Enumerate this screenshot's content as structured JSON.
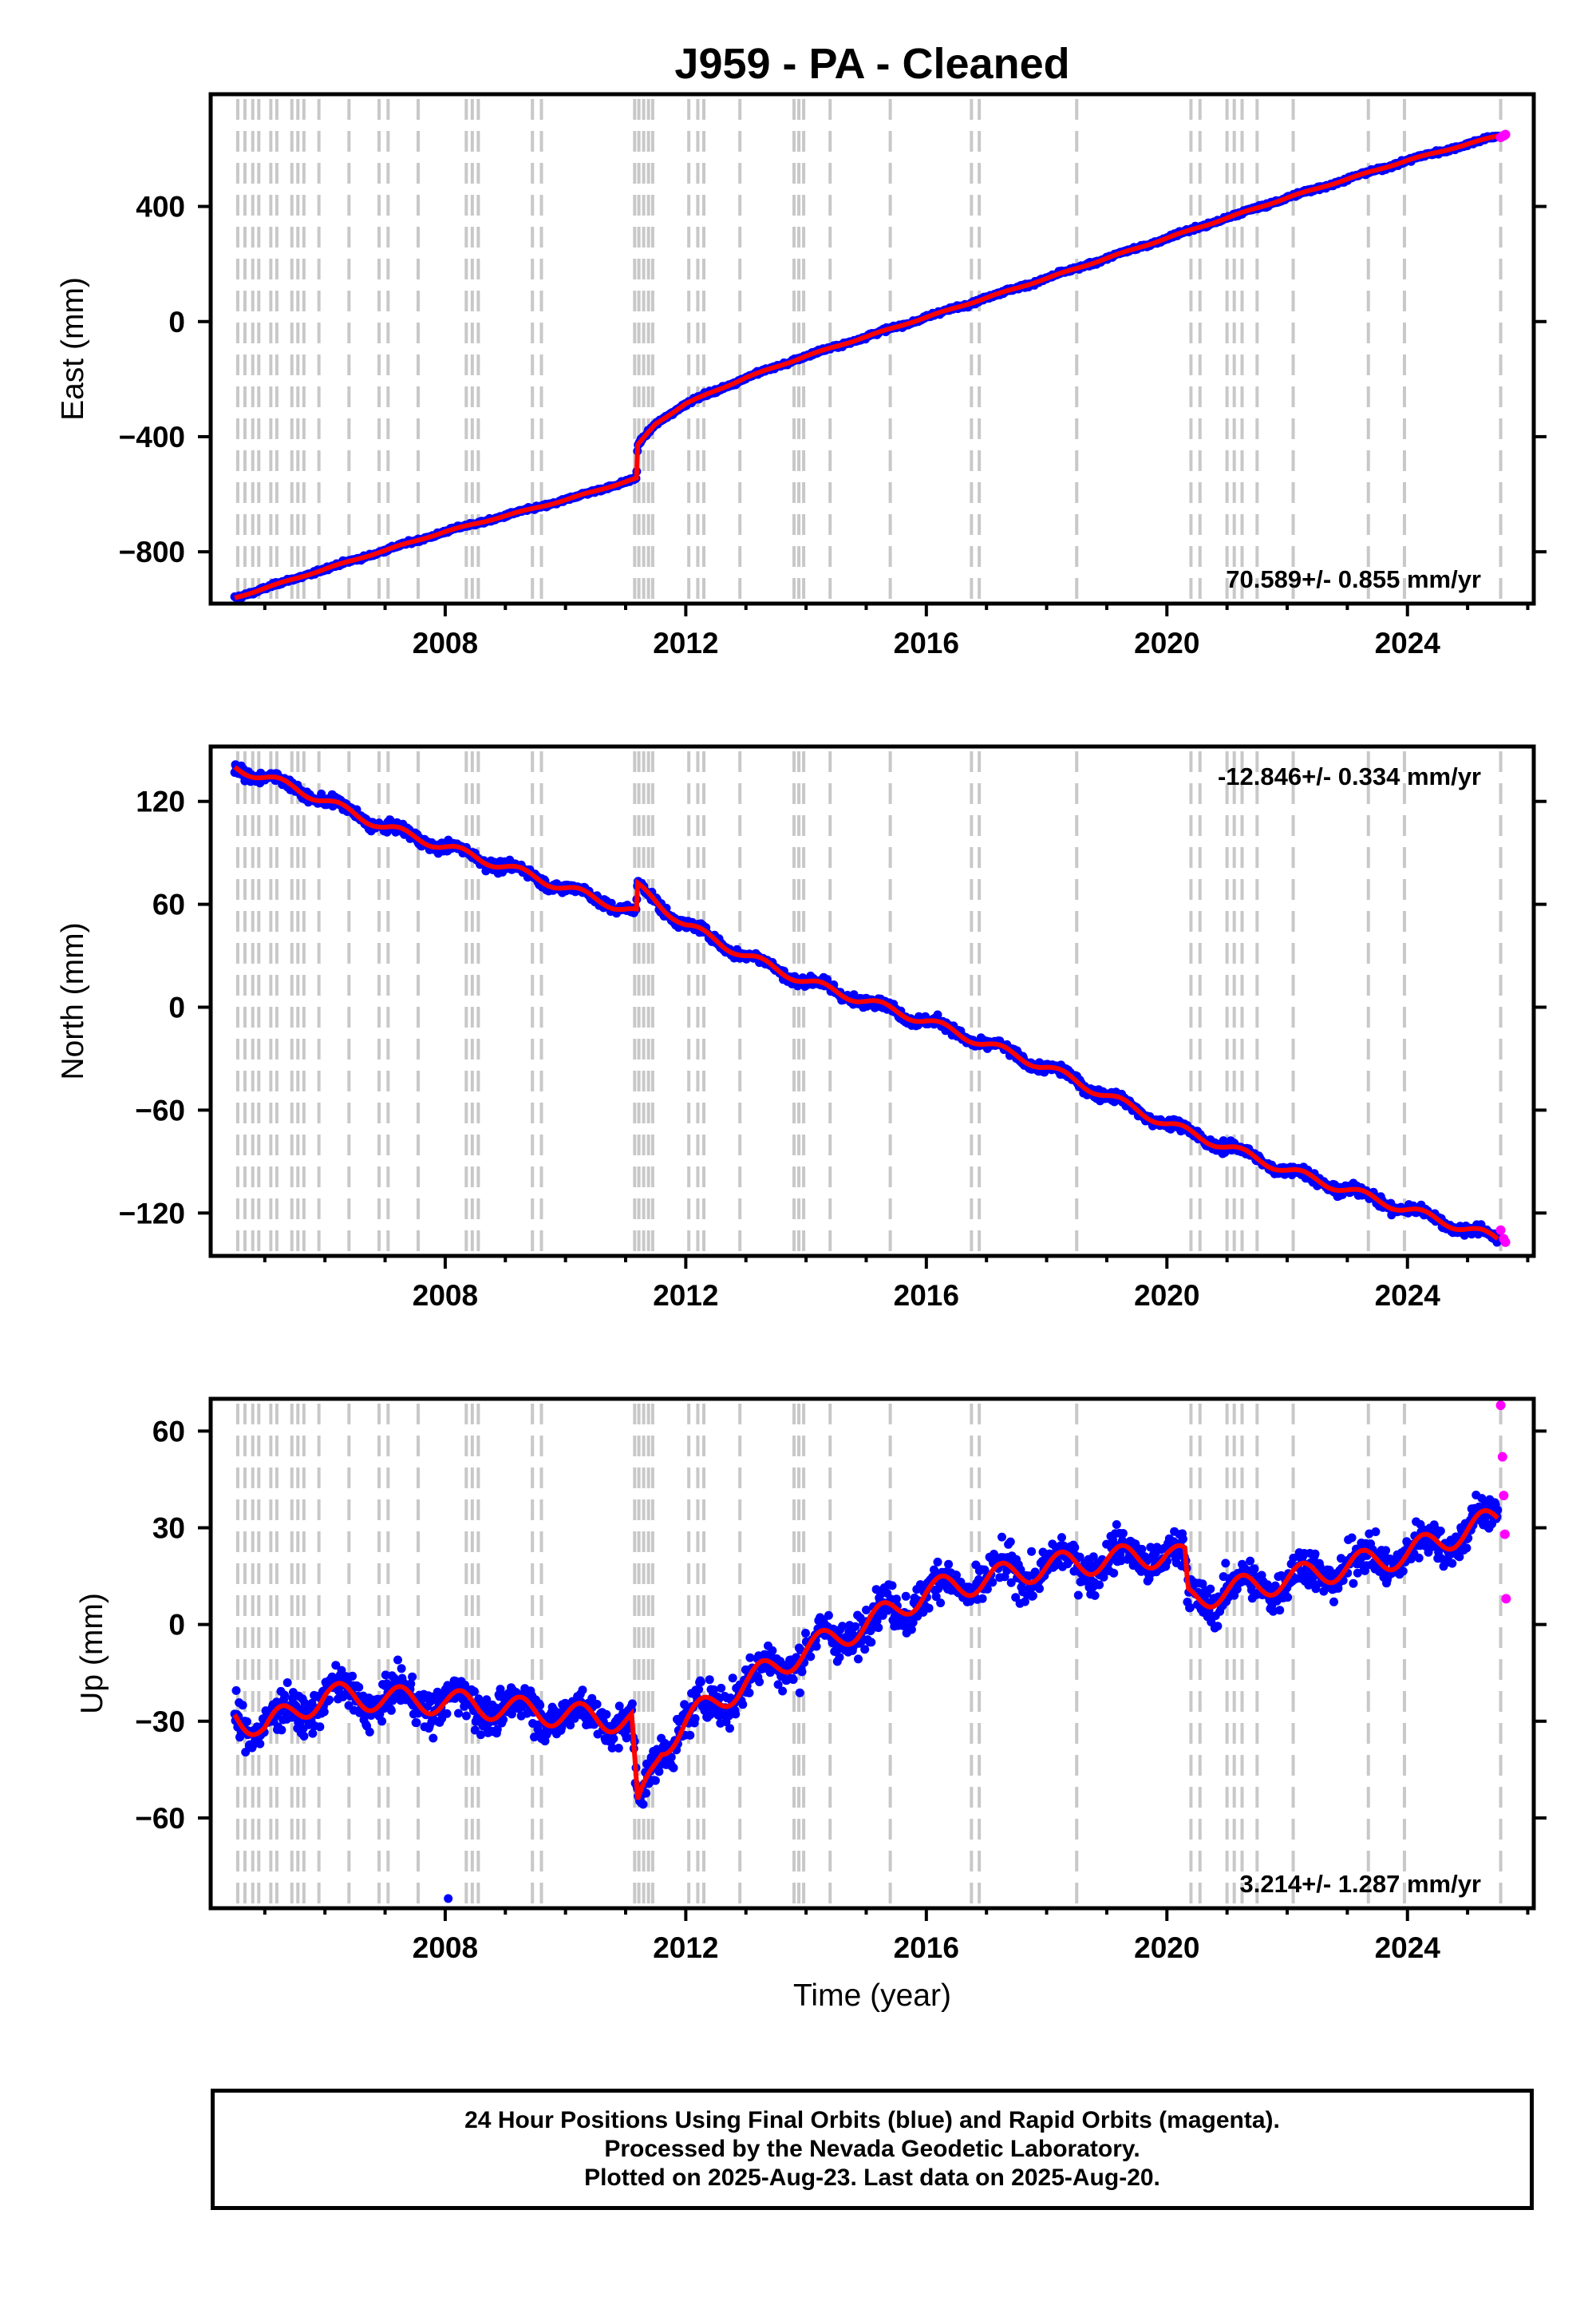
{
  "title": "J959  - PA - Cleaned",
  "xlabel": "Time (year)",
  "caption": {
    "line1": "24 Hour Positions Using Final Orbits (blue) and Rapid Orbits (magenta).",
    "line2": "Processed by the Nevada Geodetic Laboratory.",
    "line3": "Plotted on 2025-Aug-23. Last data on 2025-Aug-20."
  },
  "colors": {
    "final_orbits": "#0000ff",
    "rapid_orbits": "#ff00ff",
    "model": "#ff0000",
    "event_lines": "#c8c8c8"
  },
  "chart_data": [
    {
      "type": "scatter",
      "ylabel": "East (mm)",
      "rate": "70.589+/- 0.855 mm/yr",
      "rate_position": "bottom-right",
      "xlim": [
        2004.1,
        2026.1
      ],
      "ylim": [
        -980,
        790
      ],
      "xticks": [
        2008,
        2012,
        2016,
        2020,
        2024
      ],
      "yticks": [
        -800,
        -400,
        0,
        400
      ],
      "grid": false,
      "series": [
        {
          "kind": "final",
          "x": [
            2004.5,
            2006.0,
            2008.0,
            2010.0,
            2011.18,
            2011.2,
            2011.5,
            2012.0,
            2013.0,
            2014.0,
            2016.0,
            2018.0,
            2020.0,
            2022.0,
            2024.0,
            2025.5
          ],
          "y": [
            -960,
            -860,
            -730,
            -620,
            -545,
            -430,
            -355,
            -285,
            -195,
            -120,
            15,
            150,
            290,
            430,
            560,
            645
          ]
        },
        {
          "kind": "rapid",
          "x": [
            2025.55,
            2025.6,
            2025.63
          ],
          "y": [
            640,
            645,
            650
          ]
        }
      ]
    },
    {
      "type": "scatter",
      "ylabel": "North (mm)",
      "rate": "-12.846+/- 0.334 mm/yr",
      "rate_position": "top-right",
      "xlim": [
        2004.1,
        2026.1
      ],
      "ylim": [
        -145,
        152
      ],
      "xticks": [
        2008,
        2012,
        2016,
        2020,
        2024
      ],
      "yticks": [
        -120,
        -60,
        0,
        60,
        120
      ],
      "grid": false,
      "series": [
        {
          "kind": "final",
          "x": [
            2004.5,
            2005.5,
            2007.0,
            2009.0,
            2011.18,
            2011.2,
            2012.0,
            2013.0,
            2014.0,
            2016.0,
            2018.0,
            2020.0,
            2022.0,
            2024.0,
            2025.5
          ],
          "y": [
            140,
            128,
            105,
            82,
            55,
            70,
            48,
            30,
            15,
            -8,
            -35,
            -68,
            -95,
            -118,
            -135
          ]
        },
        {
          "kind": "rapid",
          "x": [
            2025.55,
            2025.6,
            2025.63
          ],
          "y": [
            -130,
            -135,
            -137
          ]
        }
      ]
    },
    {
      "type": "scatter",
      "ylabel": "Up (mm)",
      "rate": "3.214+/- 1.287 mm/yr",
      "rate_position": "bottom-right",
      "xlim": [
        2004.1,
        2026.1
      ],
      "ylim": [
        -88,
        70
      ],
      "xticks": [
        2008,
        2012,
        2016,
        2020,
        2024
      ],
      "yticks": [
        -60,
        -30,
        0,
        30,
        60
      ],
      "grid": false,
      "series": [
        {
          "kind": "final",
          "x": [
            2004.5,
            2005.0,
            2006.0,
            2008.0,
            2010.0,
            2011.1,
            2011.2,
            2011.6,
            2012.0,
            2013.0,
            2014.0,
            2015.0,
            2016.0,
            2018.0,
            2020.0,
            2020.3,
            2020.35,
            2022.0,
            2024.0,
            2025.5
          ],
          "y": [
            -28,
            -32,
            -22,
            -24,
            -28,
            -30,
            -58,
            -38,
            -30,
            -18,
            -8,
            0,
            10,
            18,
            22,
            20,
            8,
            14,
            22,
            33
          ]
        },
        {
          "kind": "rapid",
          "x": [
            2025.55,
            2025.58,
            2025.6,
            2025.62,
            2025.64
          ],
          "y": [
            68,
            52,
            40,
            28,
            8
          ]
        }
      ]
    }
  ]
}
